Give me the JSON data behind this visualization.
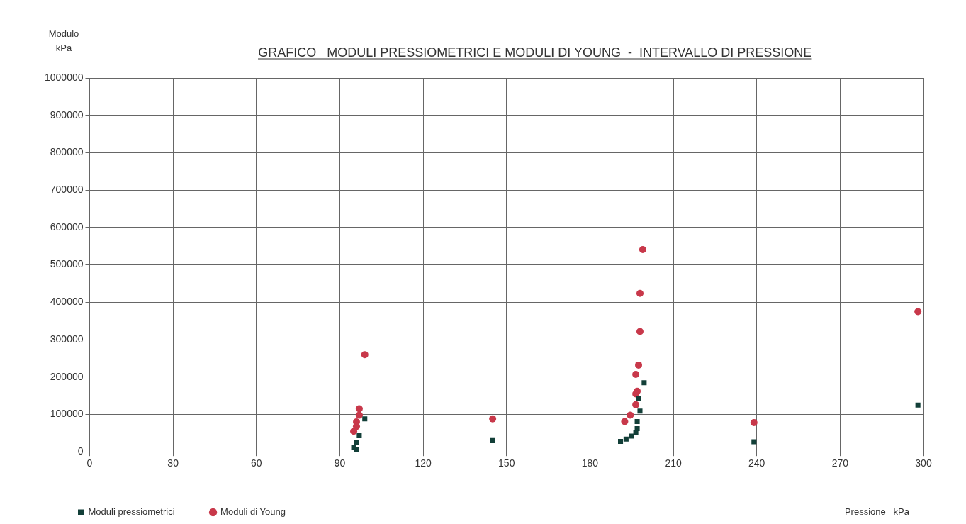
{
  "chart_data": {
    "type": "scatter",
    "title": "GRAFICO   MODULI PRESSIOMETRICI E MODULI DI YOUNG  -  INTERVALLO DI PRESSIONE",
    "xlabel": "Pressione   kPa",
    "ylabel": "Modulo kPa",
    "xlim": [
      0,
      300
    ],
    "xticks": [
      0,
      30,
      60,
      90,
      120,
      150,
      180,
      210,
      240,
      270,
      300
    ],
    "ylim": [
      0,
      1000000
    ],
    "yticks": [
      0,
      100000,
      200000,
      300000,
      400000,
      500000,
      600000,
      700000,
      800000,
      900000,
      1000000
    ],
    "grid": true,
    "legend": "bottom left",
    "series": [
      {
        "name": "Moduli pressiometrici",
        "color": "#123f38",
        "marker": "square",
        "x": [
          99,
          97,
          96,
          95,
          96,
          145,
          199.5,
          197.5,
          198,
          197,
          197,
          196.5,
          195,
          193,
          191,
          239,
          298
        ],
        "values": [
          88000,
          43000,
          25000,
          12000,
          6000,
          30000,
          185000,
          142000,
          109000,
          81000,
          62000,
          51000,
          42000,
          34000,
          28000,
          27000,
          125000
        ]
      },
      {
        "name": "Moduli di Young",
        "color": "#c8384a",
        "marker": "circle",
        "x": [
          95,
          96,
          96,
          97,
          97,
          99,
          145,
          199,
          198,
          198,
          197.5,
          196.5,
          197,
          196.5,
          196.5,
          194.5,
          192.5,
          239,
          298
        ],
        "values": [
          55000,
          68000,
          80000,
          98000,
          115000,
          260000,
          88000,
          541000,
          424000,
          322000,
          232000,
          207000,
          162000,
          155000,
          126000,
          98000,
          81000,
          78000,
          375000
        ]
      }
    ]
  }
}
